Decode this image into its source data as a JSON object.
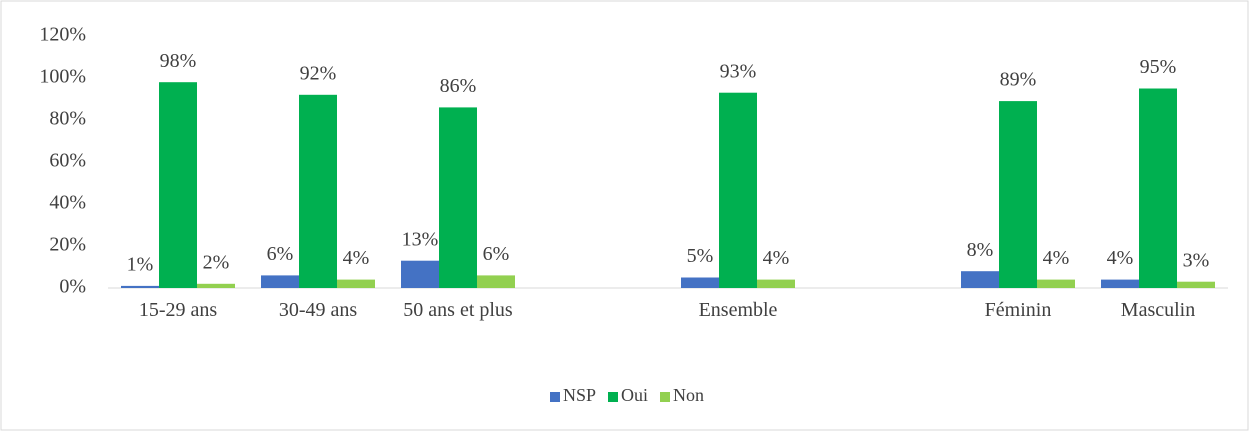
{
  "chart_data": {
    "type": "bar",
    "categories": [
      "15-29 ans",
      "30-49 ans",
      "50 ans et plus",
      null,
      "Ensemble",
      null,
      "Féminin",
      "Masculin"
    ],
    "series": [
      {
        "name": "NSP",
        "color": "#4472c4",
        "values": [
          1,
          6,
          13,
          null,
          5,
          null,
          8,
          4
        ],
        "value_labels": [
          "1%",
          "6%",
          "13%",
          null,
          "5%",
          null,
          "8%",
          "4%"
        ]
      },
      {
        "name": "Oui",
        "color": "#00b050",
        "values": [
          98,
          92,
          86,
          null,
          93,
          null,
          89,
          95
        ],
        "value_labels": [
          "98%",
          "92%",
          "86%",
          null,
          "93%",
          null,
          "89%",
          "95%"
        ]
      },
      {
        "name": "Non",
        "color": "#92d050",
        "values": [
          2,
          4,
          6,
          null,
          4,
          null,
          4,
          3
        ],
        "value_labels": [
          "2%",
          "4%",
          "6%",
          null,
          "4%",
          null,
          "4%",
          "3%"
        ]
      }
    ],
    "ylim": [
      0,
      120
    ],
    "yticks": [
      {
        "value": 0,
        "label": "0%"
      },
      {
        "value": 20,
        "label": "20%"
      },
      {
        "value": 40,
        "label": "40%"
      },
      {
        "value": 60,
        "label": "60%"
      },
      {
        "value": 80,
        "label": "80%"
      },
      {
        "value": 100,
        "label": "100%"
      },
      {
        "value": 120,
        "label": "120%"
      }
    ],
    "legend": "bottom"
  }
}
